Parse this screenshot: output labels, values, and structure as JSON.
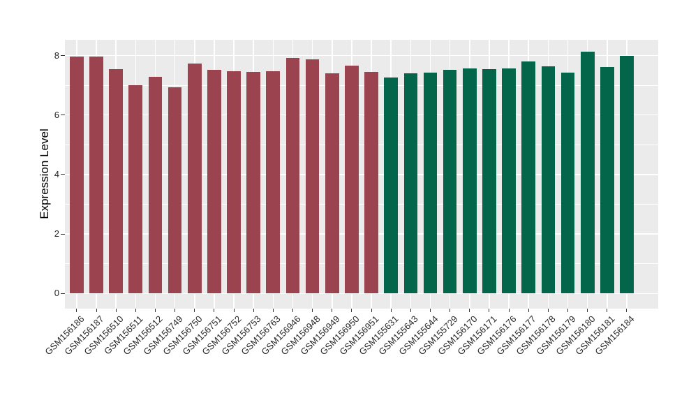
{
  "figure": {
    "background": "#FFFFFF",
    "panel_background": "#EBEBEB",
    "gridline_color": "#FFFFFF",
    "axis_text_color": "#262626",
    "axis_title_color": "#000000"
  },
  "chart_data": {
    "type": "bar",
    "title": "",
    "xlabel": "",
    "ylabel": "Expression Level",
    "ylim": [
      -0.51,
      8.53
    ],
    "yticks": [
      0,
      2,
      4,
      6,
      8
    ],
    "yticks_minor": [
      1,
      3,
      5,
      7
    ],
    "grid": "major and minor horizontal, major vertical at category centers",
    "legend": "none",
    "x_tick_angle": 45,
    "categories": [
      "GSM156186",
      "GSM156187",
      "GSM156510",
      "GSM156511",
      "GSM156512",
      "GSM156749",
      "GSM156750",
      "GSM156751",
      "GSM156752",
      "GSM156753",
      "GSM156763",
      "GSM156946",
      "GSM156948",
      "GSM156949",
      "GSM156950",
      "GSM156951",
      "GSM155631",
      "GSM155643",
      "GSM155644",
      "GSM155729",
      "GSM156170",
      "GSM156171",
      "GSM156176",
      "GSM156177",
      "GSM156178",
      "GSM156179",
      "GSM156180",
      "GSM156181",
      "GSM156184"
    ],
    "values": [
      7.97,
      7.97,
      7.55,
      7.0,
      7.28,
      6.93,
      7.73,
      7.51,
      7.48,
      7.44,
      7.47,
      7.93,
      7.87,
      7.4,
      7.67,
      7.45,
      7.26,
      7.41,
      7.43,
      7.52,
      7.57,
      7.55,
      7.57,
      7.8,
      7.64,
      7.42,
      8.12,
      7.61,
      7.99
    ],
    "groups": [
      {
        "name": "group-red",
        "color": "#9B4450",
        "start_index": 0,
        "end_index": 15
      },
      {
        "name": "group-green",
        "color": "#03664A",
        "start_index": 16,
        "end_index": 28
      }
    ]
  }
}
